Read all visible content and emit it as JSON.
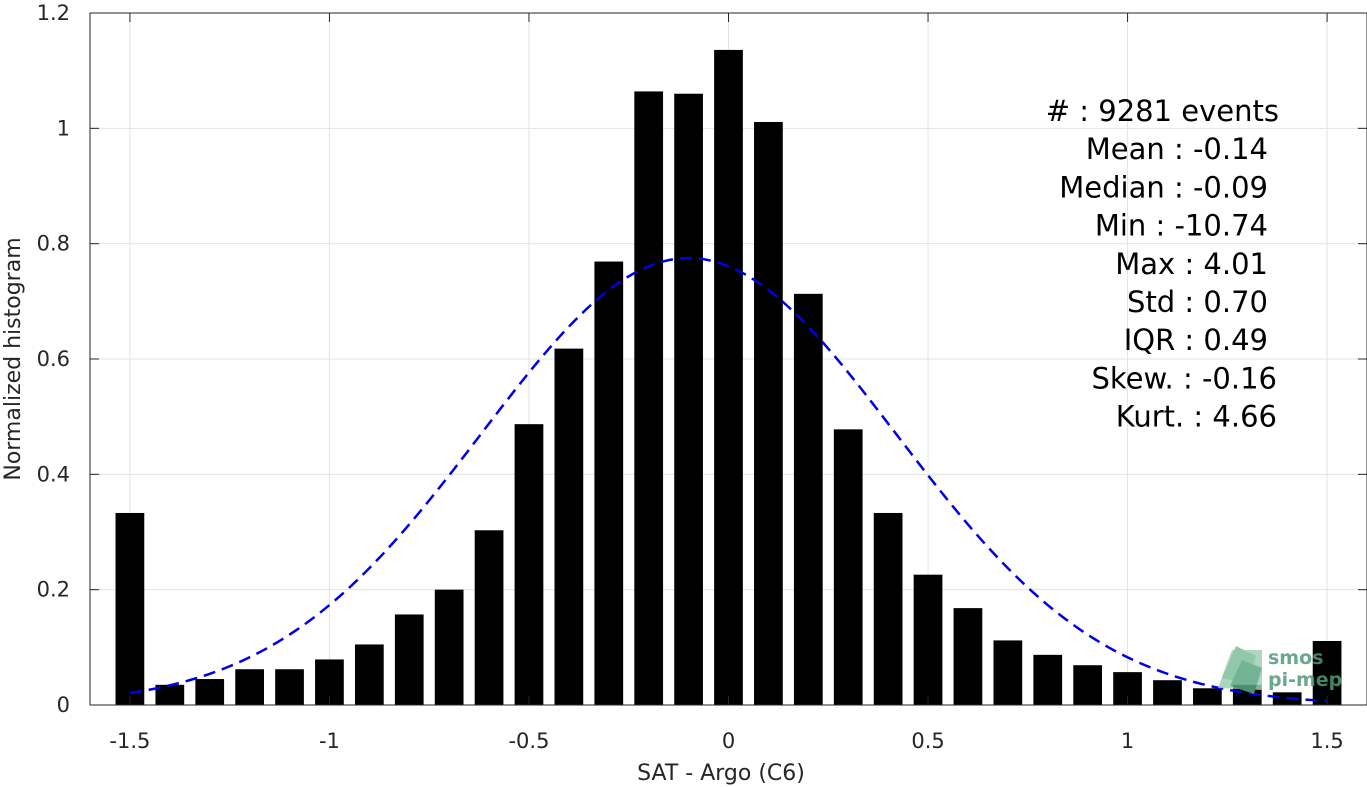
{
  "chart_data": {
    "type": "bar",
    "xlabel": "SAT - Argo (C6)",
    "ylabel": "Normalized histogram",
    "xlim": [
      -1.6,
      1.6
    ],
    "ylim": [
      0,
      1.2
    ],
    "xticks": [
      -1.5,
      -1,
      -0.5,
      0,
      0.5,
      1,
      1.5
    ],
    "xtick_labels": [
      "-1.5",
      "-1",
      "-0.5",
      "0",
      "0.5",
      "1",
      "1.5"
    ],
    "yticks": [
      0,
      0.2,
      0.4,
      0.6,
      0.8,
      1,
      1.2
    ],
    "ytick_labels": [
      "0",
      "0.2",
      "0.4",
      "0.6",
      "0.8",
      "1",
      "1.2"
    ],
    "grid": true,
    "bar_color": "#000000",
    "bars": {
      "x": [
        -1.5,
        -1.4,
        -1.3,
        -1.2,
        -1.1,
        -1.0,
        -0.9,
        -0.8,
        -0.7,
        -0.6,
        -0.5,
        -0.4,
        -0.3,
        -0.2,
        -0.1,
        0.0,
        0.1,
        0.2,
        0.3,
        0.4,
        0.5,
        0.6,
        0.7,
        0.8,
        0.9,
        1.0,
        1.1,
        1.2,
        1.3,
        1.4,
        1.5
      ],
      "values": [
        0.333,
        0.035,
        0.045,
        0.062,
        0.062,
        0.079,
        0.105,
        0.157,
        0.2,
        0.303,
        0.487,
        0.618,
        0.769,
        1.064,
        1.06,
        1.136,
        1.011,
        0.713,
        0.478,
        0.333,
        0.226,
        0.168,
        0.112,
        0.087,
        0.069,
        0.057,
        0.043,
        0.029,
        0.035,
        0.022,
        0.111
      ]
    },
    "fit": {
      "type": "normal",
      "color": "#0000e6",
      "style": "dashed",
      "mean": -0.1,
      "std": 0.52,
      "peak": 0.775,
      "x_range": [
        -1.5,
        1.5
      ]
    },
    "stats_lines": [
      "#  : 9281 events",
      "Mean : -0.14",
      "Median : -0.09",
      "Min : -10.74",
      "Max : 4.01",
      "Std : 0.70",
      "IQR : 0.49",
      "Skew. : -0.16",
      "Kurt. : 4.66"
    ]
  },
  "logo": {
    "line1": "smos",
    "line2": "pi-mep"
  }
}
